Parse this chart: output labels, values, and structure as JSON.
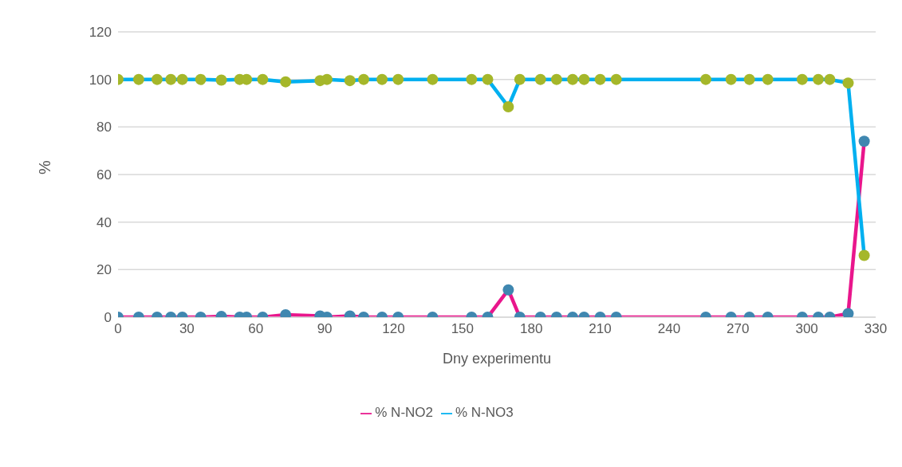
{
  "chart_data": {
    "type": "line",
    "xlabel": "Dny experimentu",
    "ylabel": "%",
    "x": [
      0,
      9,
      17,
      23,
      28,
      36,
      45,
      53,
      56,
      63,
      73,
      88,
      91,
      101,
      107,
      115,
      122,
      137,
      154,
      161,
      170,
      175,
      184,
      191,
      198,
      203,
      210,
      217,
      256,
      267,
      275,
      283,
      298,
      305,
      310,
      318,
      325
    ],
    "series": [
      {
        "name": "% N-NO2",
        "color": "#e9168c",
        "values": [
          0,
          0,
          0,
          0,
          0,
          0,
          0.3,
          0,
          0,
          0,
          1,
          0.5,
          0,
          0.5,
          0,
          0,
          0,
          0,
          0,
          0,
          11.5,
          0,
          0,
          0,
          0,
          0,
          0,
          0,
          0,
          0,
          0,
          0,
          0,
          0,
          0,
          1.5,
          74
        ]
      },
      {
        "name": "% N-NO3",
        "color": "#00b0f0",
        "values": [
          100,
          100,
          100,
          100,
          100,
          100,
          99.7,
          100,
          100,
          100,
          99,
          99.5,
          100,
          99.5,
          100,
          100,
          100,
          100,
          100,
          100,
          88.5,
          100,
          100,
          100,
          100,
          100,
          100,
          100,
          100,
          100,
          100,
          100,
          100,
          100,
          100,
          98.5,
          26
        ]
      }
    ],
    "xlim": [
      0,
      330
    ],
    "xticks": [
      0,
      30,
      60,
      90,
      120,
      150,
      180,
      210,
      240,
      270,
      300,
      330
    ],
    "ylim": [
      0,
      120
    ],
    "yticks": [
      0,
      20,
      40,
      60,
      80,
      100,
      120
    ],
    "grid": "y",
    "legend": "bottom",
    "marker": "circle"
  }
}
